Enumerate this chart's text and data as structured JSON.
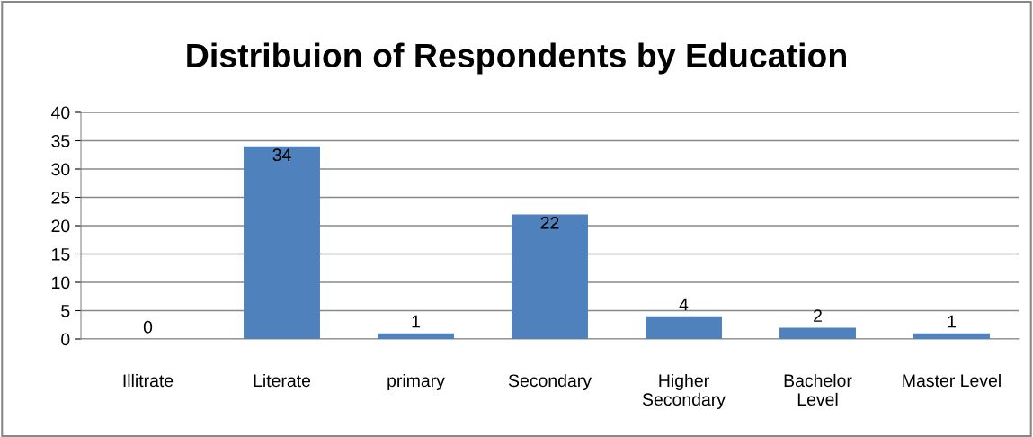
{
  "chart_data": {
    "type": "bar",
    "title": "Distribuion of Respondents by Education",
    "categories": [
      "Illitrate",
      "Literate",
      "primary",
      "Secondary",
      "Higher\nSecondary",
      "Bachelor\nLevel",
      "Master Level"
    ],
    "values": [
      0,
      34,
      1,
      22,
      4,
      2,
      1
    ],
    "color": "#4f81bd",
    "ylim": [
      0,
      40
    ],
    "yticks": [
      0,
      5,
      10,
      15,
      20,
      25,
      30,
      35,
      40
    ],
    "grid": "y",
    "data_labels": true
  }
}
